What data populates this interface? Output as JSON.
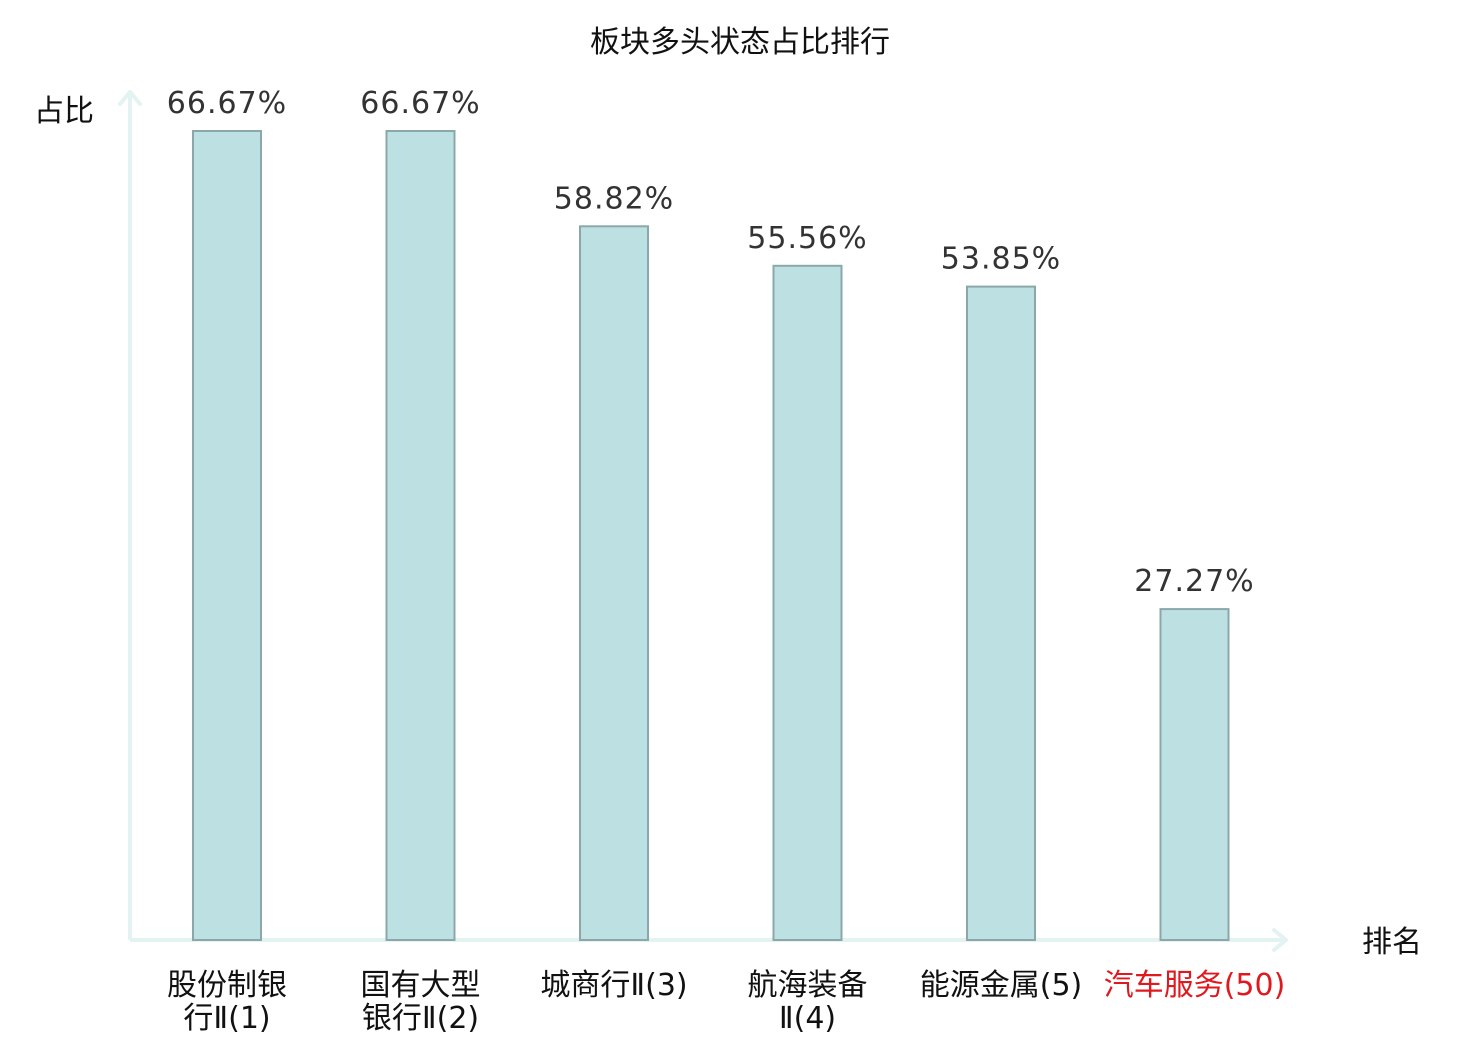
{
  "chart_data": {
    "type": "bar",
    "title": "板块多头状态占比排行",
    "xlabel": "排名",
    "ylabel": "占比",
    "ylim": [
      0,
      70
    ],
    "grid": false,
    "categories": [
      {
        "lines": [
          "股份制银",
          "行Ⅱ(1)"
        ],
        "highlight": false
      },
      {
        "lines": [
          "国有大型",
          "银行Ⅱ(2)"
        ],
        "highlight": false
      },
      {
        "lines": [
          "城商行Ⅱ(3)"
        ],
        "highlight": false
      },
      {
        "lines": [
          "航海装备",
          "Ⅱ(4)"
        ],
        "highlight": false
      },
      {
        "lines": [
          "能源金属(5)"
        ],
        "highlight": false
      },
      {
        "lines": [
          "汽车服务(50)"
        ],
        "highlight": true
      }
    ],
    "values": [
      66.67,
      66.67,
      58.82,
      55.56,
      53.85,
      27.27
    ],
    "value_labels": [
      "66.67%",
      "66.67%",
      "58.82%",
      "55.56%",
      "53.85%",
      "27.27%"
    ],
    "colors": {
      "bar_fill": "#bde0e3",
      "bar_stroke": "#8aa8aa",
      "axis": "#e3f3f1",
      "highlight_text": "#e0191f",
      "normal_text": "#111111"
    }
  }
}
